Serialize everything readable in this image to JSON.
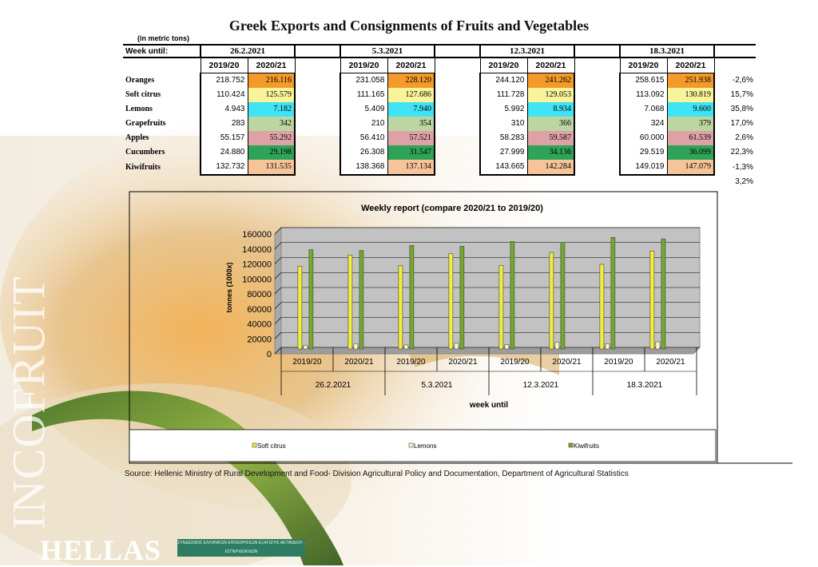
{
  "title": "Greek Exports and Consignments of Fruits and Vegetables",
  "unit_note": "(in metric tons)",
  "week_label": "Week until:",
  "weeks": [
    "26.2.2021",
    "5.3.2021",
    "12.3.2021",
    "18.3.2021"
  ],
  "season_labels": [
    "2019/20",
    "2020/21"
  ],
  "products": [
    {
      "name": "Oranges",
      "color": "#f39a2a",
      "values": [
        [
          "218.752",
          "216.116"
        ],
        [
          "231.058",
          "228.120"
        ],
        [
          "244.120",
          "241.262"
        ],
        [
          "258.615",
          "251.938"
        ]
      ],
      "change": "-2,6%"
    },
    {
      "name": "Soft citrus",
      "color": "#f9f39a",
      "values": [
        [
          "110.424",
          "125.579"
        ],
        [
          "111.165",
          "127.686"
        ],
        [
          "111.728",
          "129.053"
        ],
        [
          "113.092",
          "130.819"
        ]
      ],
      "change": "15,7%"
    },
    {
      "name": "Lemons",
      "color": "#3fe3f3",
      "values": [
        [
          "4.943",
          "7.182"
        ],
        [
          "5.409",
          "7.940"
        ],
        [
          "5.992",
          "8.934"
        ],
        [
          "7.068",
          "9.600"
        ]
      ],
      "change": "35,8%"
    },
    {
      "name": "Grapefruits",
      "color": "#bcd6a2",
      "values": [
        [
          "283",
          "342"
        ],
        [
          "210",
          "354"
        ],
        [
          "310",
          "366"
        ],
        [
          "324",
          "379"
        ]
      ],
      "change": "17,0%"
    },
    {
      "name": "Apples",
      "color": "#dca2a6",
      "values": [
        [
          "55.157",
          "55.292"
        ],
        [
          "56.410",
          "57.521"
        ],
        [
          "58.283",
          "59.587"
        ],
        [
          "60.000",
          "61.539"
        ]
      ],
      "change": "2,6%"
    },
    {
      "name": "Cucumbers",
      "color": "#2fa357",
      "values": [
        [
          "24.880",
          "29.198"
        ],
        [
          "26.308",
          "31.547"
        ],
        [
          "27.999",
          "34.136"
        ],
        [
          "29.519",
          "36.099"
        ]
      ],
      "change": "22,3%"
    },
    {
      "name": "Kiwifruits",
      "color": "#f7c49a",
      "values": [
        [
          "132.732",
          "131.535"
        ],
        [
          "138.368",
          "137.134"
        ],
        [
          "143.665",
          "142.284"
        ],
        [
          "149.019",
          "147.079"
        ]
      ],
      "change": "-1,3%"
    }
  ],
  "total_change": "3,2%",
  "chart_data": {
    "type": "bar",
    "title": "Weekly report (compare 2020/21 to 2019/20)",
    "ylabel": "tonnes (1000x)",
    "xlabel": "week until",
    "ylim": [
      0,
      160000
    ],
    "yticks": [
      0,
      20000,
      40000,
      60000,
      80000,
      100000,
      120000,
      140000,
      160000
    ],
    "categories": [
      "2019/20",
      "2020/21",
      "2019/20",
      "2020/21",
      "2019/20",
      "2020/21",
      "2019/20",
      "2020/21"
    ],
    "groups": [
      "26.2.2021",
      "5.3.2021",
      "12.3.2021",
      "18.3.2021"
    ],
    "series": [
      {
        "name": "Soft citrus",
        "color": "#f2ef3a",
        "values": [
          110424,
          125579,
          111165,
          127686,
          111728,
          129053,
          113092,
          130819
        ]
      },
      {
        "name": "Lemons",
        "color": "#fbf7c8",
        "values": [
          4943,
          7182,
          5409,
          7940,
          5992,
          8934,
          7068,
          9600
        ]
      },
      {
        "name": "Kiwifruits",
        "color": "#74a82a",
        "values": [
          132732,
          131535,
          138368,
          137134,
          143665,
          142284,
          149019,
          147079
        ]
      }
    ]
  },
  "source": "Source: Hellenic Ministry of Rural Development and Food- Division Agricultural Policy and Documentation, Department of Agricultural Statistics",
  "watermark": "INCOFRUIT",
  "brand": "HELLAS",
  "badge_text": "ΣΥΝΔΕΣΜΟΣ ΕΛΛΗΝΙΚΩΝ ΕΠΙΧΕΙΡΗΣΕΩΝ ΕΞΑΓΩΓΗΣ ΑΚΤΙΝΙΔΙΟΥ - ΕΣΠΕΡΙΔΟΕΙΔΩΝ"
}
